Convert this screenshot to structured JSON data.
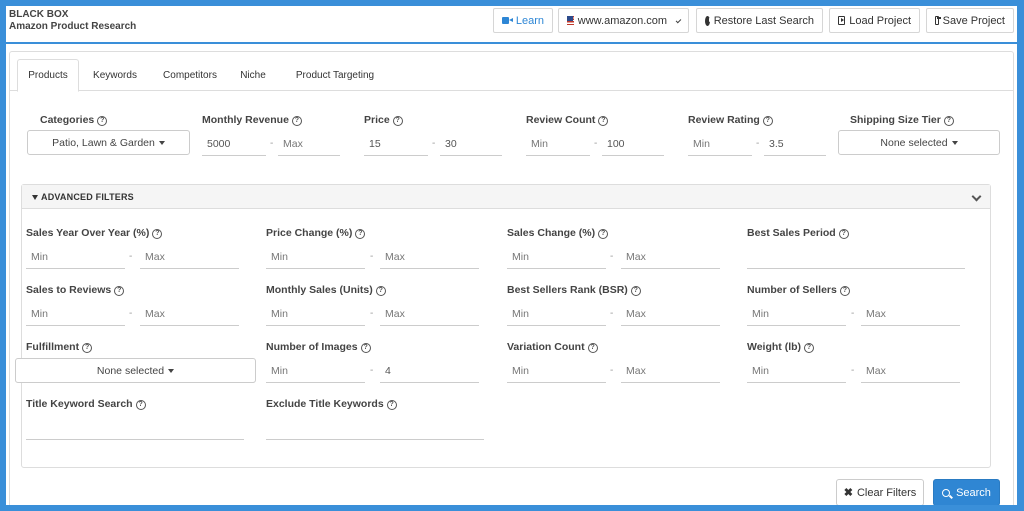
{
  "app": {
    "brand_line1": "BLACK BOX",
    "brand_line2": "Amazon Product Research"
  },
  "toolbar": {
    "learn": "Learn",
    "marketplace": "www.amazon.com",
    "restore": "Restore Last Search",
    "load": "Load Project",
    "save": "Save Project"
  },
  "tabs": [
    "Products",
    "Keywords",
    "Competitors",
    "Niche",
    "Product Targeting"
  ],
  "filters": {
    "categories": {
      "label": "Categories",
      "value": "Patio, Lawn & Garden"
    },
    "monthly_revenue": {
      "label": "Monthly Revenue",
      "min": "5000",
      "max": "Max"
    },
    "price": {
      "label": "Price",
      "min": "15",
      "max": "30"
    },
    "review_count": {
      "label": "Review Count",
      "min": "Min",
      "max": "100"
    },
    "review_rating": {
      "label": "Review Rating",
      "min": "Min",
      "max": "3.5"
    },
    "shipping_size_tier": {
      "label": "Shipping Size Tier",
      "value": "None selected"
    }
  },
  "advanced": {
    "title": "ADVANCED FILTERS",
    "sales_yoy": {
      "label": "Sales Year Over Year (%)",
      "min": "Min",
      "max": "Max"
    },
    "price_change": {
      "label": "Price Change (%)",
      "min": "Min",
      "max": "Max"
    },
    "sales_change": {
      "label": "Sales Change (%)",
      "min": "Min",
      "max": "Max"
    },
    "best_sales_period": {
      "label": "Best Sales Period",
      "value": ""
    },
    "sales_to_reviews": {
      "label": "Sales to Reviews",
      "min": "Min",
      "max": "Max"
    },
    "monthly_sales": {
      "label": "Monthly Sales (Units)",
      "min": "Min",
      "max": "Max"
    },
    "bsr": {
      "label": "Best Sellers Rank (BSR)",
      "min": "Min",
      "max": "Max"
    },
    "num_sellers": {
      "label": "Number of Sellers",
      "min": "Min",
      "max": "Max"
    },
    "fulfillment": {
      "label": "Fulfillment",
      "value": "None selected"
    },
    "num_images": {
      "label": "Number of Images",
      "min": "Min",
      "max": "4"
    },
    "variation_count": {
      "label": "Variation Count",
      "min": "Min",
      "max": "Max"
    },
    "weight": {
      "label": "Weight (lb)",
      "min": "Min",
      "max": "Max"
    },
    "title_keyword": {
      "label": "Title Keyword Search",
      "value": ""
    },
    "exclude_title": {
      "label": "Exclude Title Keywords",
      "value": ""
    }
  },
  "actions": {
    "clear": "Clear Filters",
    "search": "Search"
  },
  "dash": "-"
}
